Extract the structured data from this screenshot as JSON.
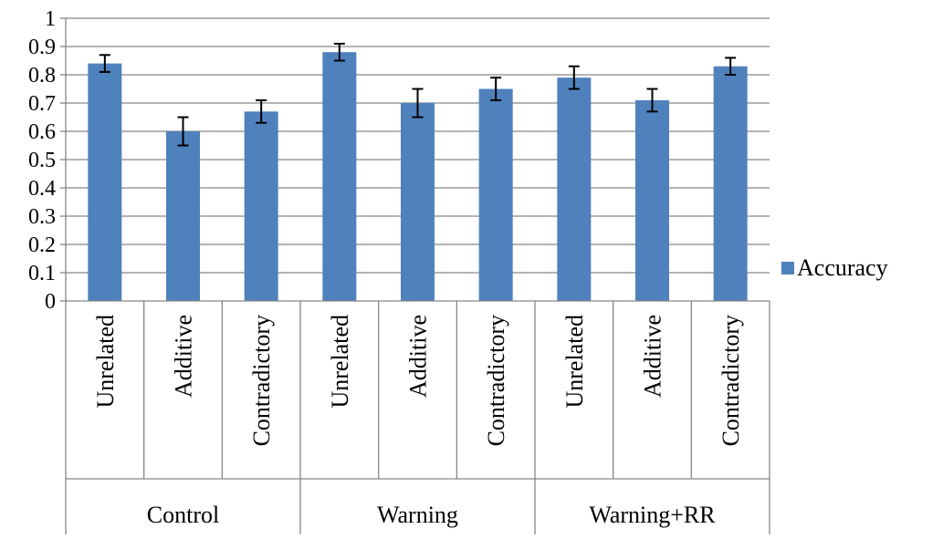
{
  "chart_data": {
    "type": "bar",
    "title": "",
    "xlabel": "",
    "ylabel": "",
    "ylim": [
      0,
      1
    ],
    "yticks": [
      "0",
      "0.1",
      "0.2",
      "0.3",
      "0.4",
      "0.5",
      "0.6",
      "0.7",
      "0.8",
      "0.9",
      "1"
    ],
    "grid": "horizontal",
    "legend_position": "right",
    "groups": [
      {
        "label": "Control",
        "categories": [
          "Unrelated",
          "Additive",
          "Contradictory"
        ]
      },
      {
        "label": "Warning",
        "categories": [
          "Unrelated",
          "Additive",
          "Contradictory"
        ]
      },
      {
        "label": "Warning+RR",
        "categories": [
          "Unrelated",
          "Additive",
          "Contradictory"
        ]
      }
    ],
    "series": [
      {
        "name": "Accuracy",
        "color": "#4f81bd",
        "values": [
          0.84,
          0.6,
          0.67,
          0.88,
          0.7,
          0.75,
          0.79,
          0.71,
          0.83
        ],
        "error": [
          0.03,
          0.05,
          0.04,
          0.03,
          0.05,
          0.04,
          0.04,
          0.04,
          0.03
        ]
      }
    ]
  }
}
